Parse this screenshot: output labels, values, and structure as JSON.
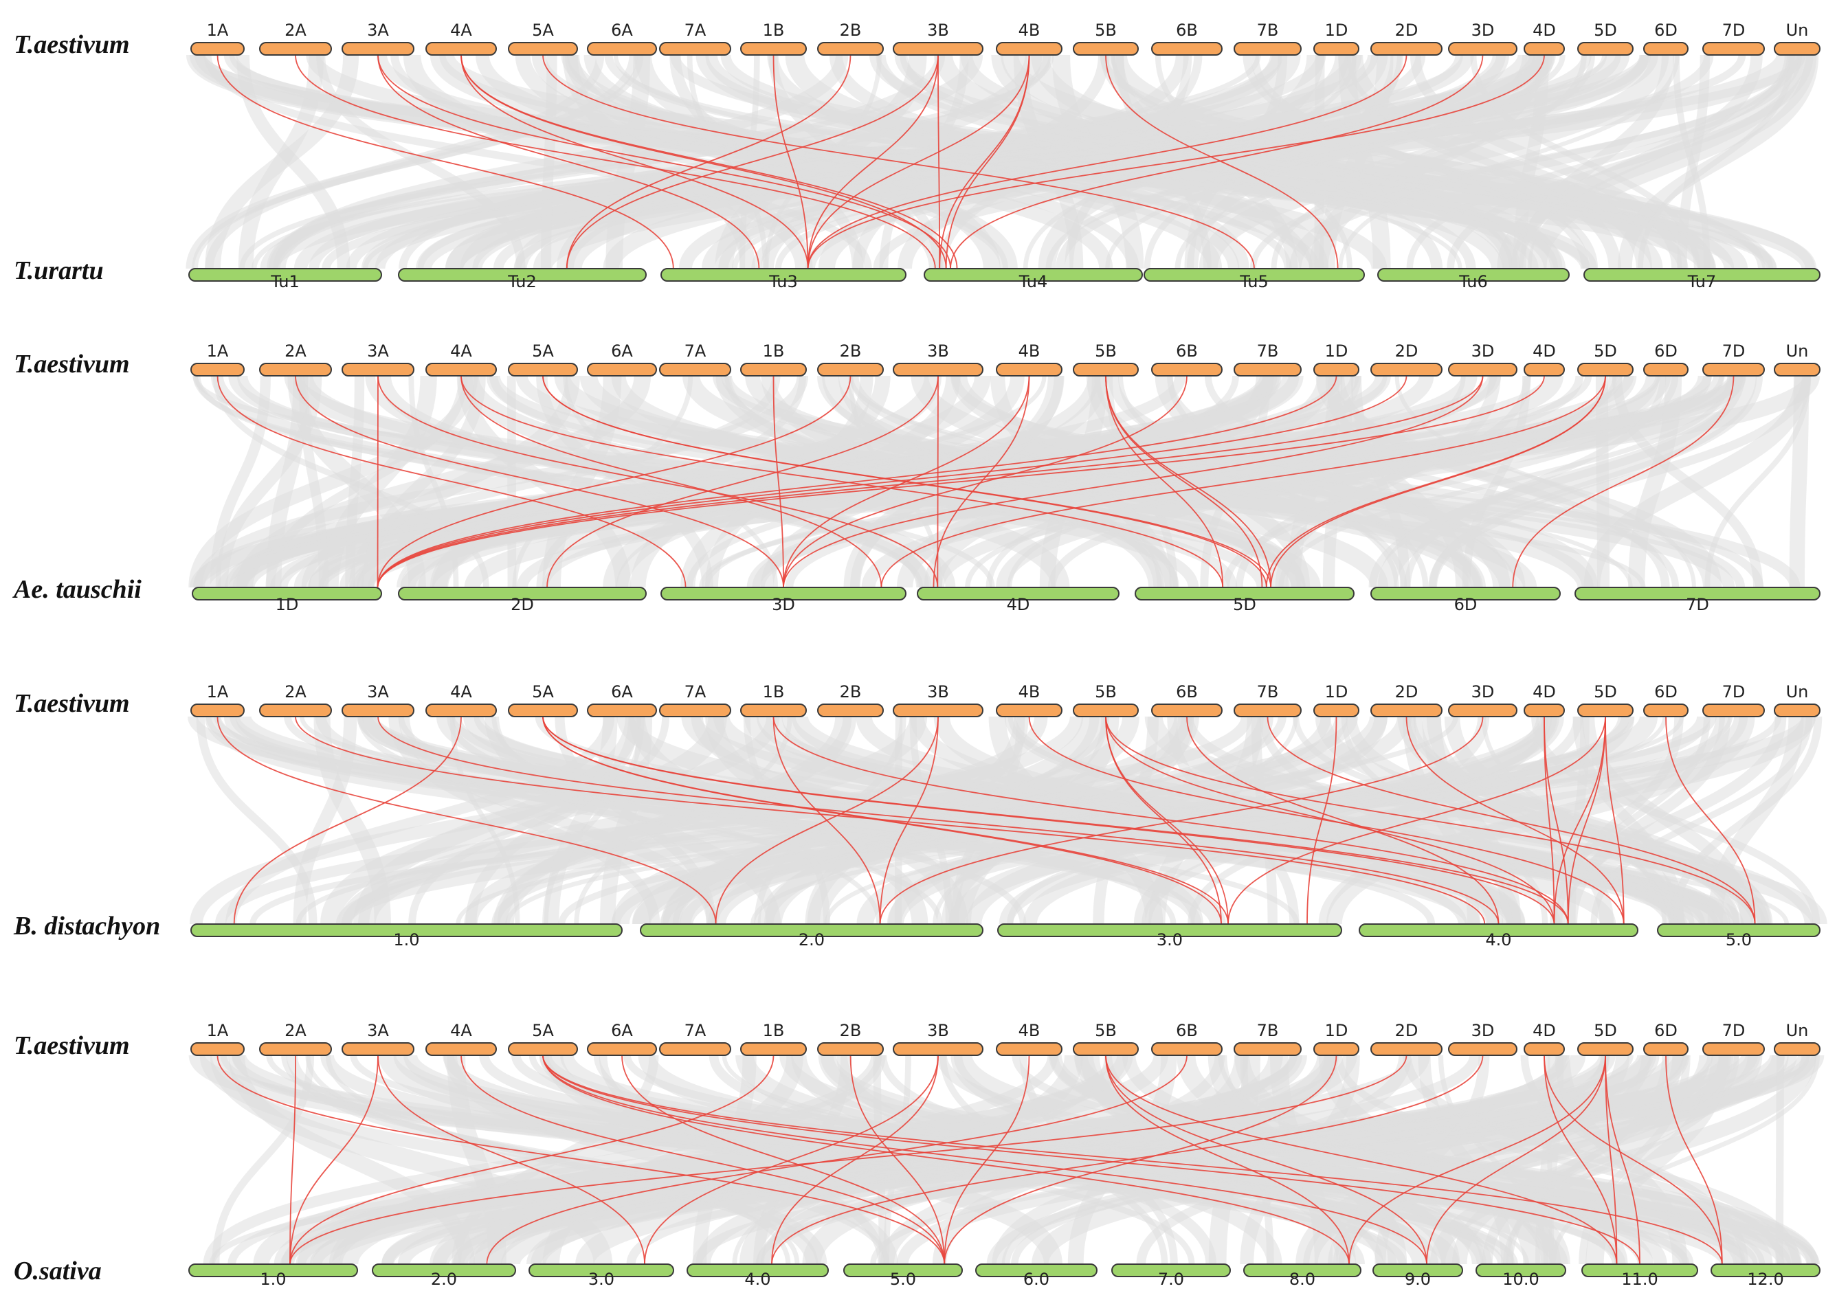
{
  "colors": {
    "top_bar": "#f7a55b",
    "bottom_bar": "#9ed46a",
    "link": "#e8453c",
    "background_links": "#dedede"
  },
  "top_chromosomes": [
    "1A",
    "2A",
    "3A",
    "4A",
    "5A",
    "6A",
    "7A",
    "1B",
    "2B",
    "3B",
    "4B",
    "5B",
    "6B",
    "7B",
    "1D",
    "2D",
    "3D",
    "4D",
    "5D",
    "6D",
    "7D",
    "Un"
  ],
  "panels": [
    {
      "top_species": "T.aestivum",
      "bottom_species": "T.urartu",
      "bottom_chromosomes": [
        "Tu1",
        "Tu2",
        "Tu3",
        "Tu4",
        "Tu5",
        "Tu6",
        "Tu7"
      ],
      "links": [
        {
          "from": "1A",
          "to": "Tu3",
          "at": 0.05
        },
        {
          "from": "2A",
          "to": "Tu4",
          "at": 0.05
        },
        {
          "from": "3A",
          "to": "Tu3",
          "at": 0.4
        },
        {
          "from": "3A",
          "to": "Tu4",
          "at": 0.12
        },
        {
          "from": "4A",
          "to": "Tu3",
          "at": 0.6
        },
        {
          "from": "4A",
          "to": "Tu4",
          "at": 0.15
        },
        {
          "from": "4A",
          "to": "Tu4",
          "at": 0.1
        },
        {
          "from": "5A",
          "to": "Tu5",
          "at": 0.5
        },
        {
          "from": "1B",
          "to": "Tu3",
          "at": 0.6
        },
        {
          "from": "2B",
          "to": "Tu2",
          "at": 0.68
        },
        {
          "from": "3B",
          "to": "Tu3",
          "at": 0.6
        },
        {
          "from": "3B",
          "to": "Tu4",
          "at": 0.07
        },
        {
          "from": "3B",
          "to": "Tu2",
          "at": 0.68
        },
        {
          "from": "4B",
          "to": "Tu4",
          "at": 0.07
        },
        {
          "from": "4B",
          "to": "Tu4",
          "at": 0.1
        },
        {
          "from": "4B",
          "to": "Tu3",
          "at": 0.6
        },
        {
          "from": "5B",
          "to": "Tu5",
          "at": 0.88
        },
        {
          "from": "2D",
          "to": "Tu3",
          "at": 0.6
        },
        {
          "from": "3D",
          "to": "Tu4",
          "at": 0.12
        },
        {
          "from": "4D",
          "to": "Tu3",
          "at": 0.6
        }
      ]
    },
    {
      "top_species": "T.aestivum",
      "bottom_species": "Ae. tauschii",
      "bottom_chromosomes": [
        "1D",
        "2D",
        "3D",
        "4D",
        "5D",
        "6D",
        "7D"
      ],
      "links": [
        {
          "from": "1A",
          "to": "3D",
          "at": 0.1
        },
        {
          "from": "2A",
          "to": "3D",
          "at": 0.5
        },
        {
          "from": "3A",
          "to": "1D",
          "at": 0.98
        },
        {
          "from": "3A",
          "to": "4D",
          "at": 0.1
        },
        {
          "from": "4A",
          "to": "5D",
          "at": 0.4
        },
        {
          "from": "4A",
          "to": "3D",
          "at": 0.9
        },
        {
          "from": "5A",
          "to": "5D",
          "at": 0.6
        },
        {
          "from": "5A",
          "to": "5D",
          "at": 0.62
        },
        {
          "from": "1B",
          "to": "3D",
          "at": 0.5
        },
        {
          "from": "2B",
          "to": "1D",
          "at": 0.98
        },
        {
          "from": "3B",
          "to": "2D",
          "at": 0.6
        },
        {
          "from": "3B",
          "to": "4D",
          "at": 0.1
        },
        {
          "from": "4B",
          "to": "3D",
          "at": 0.5
        },
        {
          "from": "4B",
          "to": "4D",
          "at": 0.08
        },
        {
          "from": "5B",
          "to": "5D",
          "at": 0.58
        },
        {
          "from": "5B",
          "to": "5D",
          "at": 0.62
        },
        {
          "from": "5B",
          "to": "5D",
          "at": 0.4
        },
        {
          "from": "6B",
          "to": "3D",
          "at": 0.5
        },
        {
          "from": "1D",
          "to": "1D",
          "at": 0.98
        },
        {
          "from": "2D",
          "to": "1D",
          "at": 0.98
        },
        {
          "from": "3D",
          "to": "1D",
          "at": 0.98
        },
        {
          "from": "3D",
          "to": "3D",
          "at": 0.5
        },
        {
          "from": "4D",
          "to": "1D",
          "at": 0.98
        },
        {
          "from": "5D",
          "to": "5D",
          "at": 0.6
        },
        {
          "from": "5D",
          "to": "5D",
          "at": 0.62
        },
        {
          "from": "5D",
          "to": "3D",
          "at": 0.9
        },
        {
          "from": "7D",
          "to": "6D",
          "at": 0.75
        }
      ]
    },
    {
      "top_species": "T.aestivum",
      "bottom_species": "B. distachyon",
      "bottom_chromosomes": [
        "1.0",
        "2.0",
        "3.0",
        "4.0",
        "5.0"
      ],
      "links": [
        {
          "from": "1A",
          "to": "2.0",
          "at": 0.22
        },
        {
          "from": "2A",
          "to": "4.0",
          "at": 0.45
        },
        {
          "from": "3A",
          "to": "4.0",
          "at": 0.5
        },
        {
          "from": "4A",
          "to": "1.0",
          "at": 0.1
        },
        {
          "from": "5A",
          "to": "3.0",
          "at": 0.65
        },
        {
          "from": "5A",
          "to": "3.0",
          "at": 0.67
        },
        {
          "from": "5A",
          "to": "4.0",
          "at": 0.7
        },
        {
          "from": "5A",
          "to": "4.0",
          "at": 0.75
        },
        {
          "from": "1B",
          "to": "2.0",
          "at": 0.7
        },
        {
          "from": "1B",
          "to": "4.0",
          "at": 0.75
        },
        {
          "from": "3B",
          "to": "2.0",
          "at": 0.22
        },
        {
          "from": "3B",
          "to": "2.0",
          "at": 0.7
        },
        {
          "from": "4B",
          "to": "4.0",
          "at": 0.95
        },
        {
          "from": "5B",
          "to": "3.0",
          "at": 0.65
        },
        {
          "from": "5B",
          "to": "3.0",
          "at": 0.67
        },
        {
          "from": "5B",
          "to": "4.0",
          "at": 0.7
        },
        {
          "from": "5B",
          "to": "5.0",
          "at": 0.6
        },
        {
          "from": "6B",
          "to": "4.0",
          "at": 0.5
        },
        {
          "from": "7B",
          "to": "5.0",
          "at": 0.6
        },
        {
          "from": "1D",
          "to": "3.0",
          "at": 0.9
        },
        {
          "from": "2D",
          "to": "4.0",
          "at": 0.95
        },
        {
          "from": "3D",
          "to": "2.0",
          "at": 0.7
        },
        {
          "from": "4D",
          "to": "4.0",
          "at": 0.7
        },
        {
          "from": "4D",
          "to": "4.0",
          "at": 0.75
        },
        {
          "from": "5D",
          "to": "3.0",
          "at": 0.67
        },
        {
          "from": "5D",
          "to": "4.0",
          "at": 0.7
        },
        {
          "from": "5D",
          "to": "4.0",
          "at": 0.75
        },
        {
          "from": "5D",
          "to": "4.0",
          "at": 0.95
        },
        {
          "from": "6D",
          "to": "5.0",
          "at": 0.6
        }
      ]
    },
    {
      "top_species": "T.aestivum",
      "bottom_species": "O.sativa",
      "bottom_chromosomes": [
        "1.0",
        "2.0",
        "3.0",
        "4.0",
        "5.0",
        "6.0",
        "7.0",
        "8.0",
        "9.0",
        "10.0",
        "11.0",
        "12.0"
      ],
      "links": [
        {
          "from": "1A",
          "to": "5.0",
          "at": 0.85
        },
        {
          "from": "2A",
          "to": "1.0",
          "at": 0.6
        },
        {
          "from": "3A",
          "to": "1.0",
          "at": 0.6
        },
        {
          "from": "3A",
          "to": "3.0",
          "at": 0.8
        },
        {
          "from": "4A",
          "to": "5.0",
          "at": 0.85
        },
        {
          "from": "5A",
          "to": "8.0",
          "at": 0.9
        },
        {
          "from": "5A",
          "to": "9.0",
          "at": 0.6
        },
        {
          "from": "5A",
          "to": "11.0",
          "at": 0.5
        },
        {
          "from": "5A",
          "to": "12.0",
          "at": 0.1
        },
        {
          "from": "1B",
          "to": "1.0",
          "at": 0.6
        },
        {
          "from": "2B",
          "to": "5.0",
          "at": 0.85
        },
        {
          "from": "3B",
          "to": "3.0",
          "at": 0.8
        },
        {
          "from": "3B",
          "to": "4.0",
          "at": 0.6
        },
        {
          "from": "4B",
          "to": "5.0",
          "at": 0.85
        },
        {
          "from": "5B",
          "to": "8.0",
          "at": 0.9
        },
        {
          "from": "5B",
          "to": "9.0",
          "at": 0.6
        },
        {
          "from": "5B",
          "to": "11.0",
          "at": 0.3
        },
        {
          "from": "6B",
          "to": "2.0",
          "at": 0.8
        },
        {
          "from": "1D",
          "to": "5.0",
          "at": 0.85
        },
        {
          "from": "2D",
          "to": "1.0",
          "at": 0.6
        },
        {
          "from": "3D",
          "to": "4.0",
          "at": 0.6
        },
        {
          "from": "4D",
          "to": "11.0",
          "at": 0.3
        },
        {
          "from": "4D",
          "to": "12.0",
          "at": 0.1
        },
        {
          "from": "5D",
          "to": "8.0",
          "at": 0.9
        },
        {
          "from": "5D",
          "to": "9.0",
          "at": 0.6
        },
        {
          "from": "5D",
          "to": "11.0",
          "at": 0.3
        },
        {
          "from": "5D",
          "to": "11.0",
          "at": 0.5
        },
        {
          "from": "6D",
          "to": "12.0",
          "at": 0.1
        },
        {
          "from": "6A",
          "to": "5.0",
          "at": 0.85
        }
      ]
    }
  ]
}
